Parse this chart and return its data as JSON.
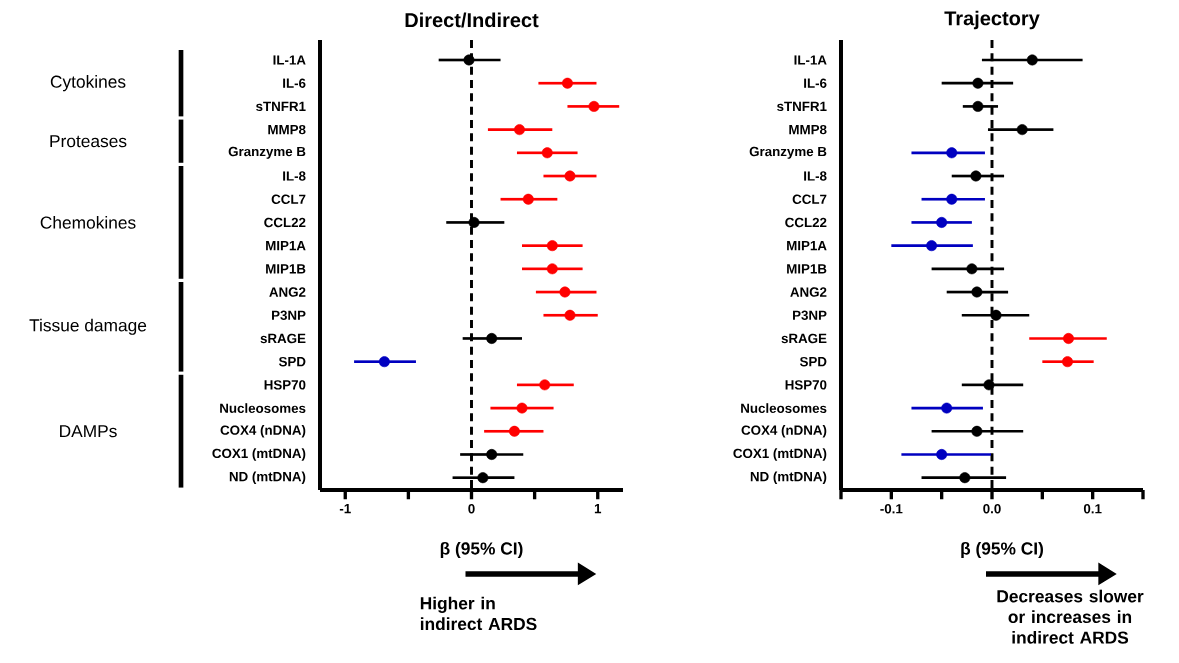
{
  "chart_data": [
    {
      "type": "scatter",
      "title": "Direct/Indirect",
      "xlabel": "β (95% CI)",
      "orientation": "horizontal",
      "categories": [
        "IL-1A",
        "IL-6",
        "sTNFR1",
        "MMP8",
        "Granzyme B",
        "IL-8",
        "CCL7",
        "CCL22",
        "MIP1A",
        "MIP1B",
        "ANG2",
        "P3NP",
        "sRAGE",
        "SPD",
        "HSP70",
        "Nucleosomes",
        "COX4 (nDNA)",
        "COX1 (mtDNA)",
        "ND (mtDNA)"
      ],
      "values": [
        -0.02,
        0.76,
        0.97,
        0.38,
        0.6,
        0.78,
        0.45,
        0.02,
        0.64,
        0.64,
        0.74,
        0.78,
        0.16,
        -0.69,
        0.58,
        0.4,
        0.34,
        0.16,
        0.09
      ],
      "errors": [
        [
          -0.26,
          0.23
        ],
        [
          0.53,
          0.99
        ],
        [
          0.76,
          1.17
        ],
        [
          0.13,
          0.64
        ],
        [
          0.36,
          0.84
        ],
        [
          0.57,
          0.99
        ],
        [
          0.23,
          0.68
        ],
        [
          -0.2,
          0.26
        ],
        [
          0.4,
          0.88
        ],
        [
          0.4,
          0.88
        ],
        [
          0.51,
          0.99
        ],
        [
          0.57,
          1.0
        ],
        [
          -0.07,
          0.4
        ],
        [
          -0.93,
          -0.44
        ],
        [
          0.36,
          0.81
        ],
        [
          0.15,
          0.65
        ],
        [
          0.1,
          0.57
        ],
        [
          -0.09,
          0.41
        ],
        [
          -0.15,
          0.34
        ]
      ],
      "colors": [
        "#000000",
        "#ff0000",
        "#ff0000",
        "#ff0000",
        "#ff0000",
        "#ff0000",
        "#ff0000",
        "#000000",
        "#ff0000",
        "#ff0000",
        "#ff0000",
        "#ff0000",
        "#000000",
        "#0000c0",
        "#ff0000",
        "#ff0000",
        "#ff0000",
        "#000000",
        "#000000"
      ],
      "xlim": [
        -1.2,
        1.2
      ],
      "xticks": [
        -1,
        {
          "value": -0.5,
          "label": null
        },
        0,
        {
          "value": 0.5,
          "label": null
        },
        1
      ],
      "ref_lines": [
        {
          "axis": "x",
          "value": 0,
          "line_style": "dashed",
          "color": "#000000"
        }
      ],
      "annotations": [
        "Cytokines",
        "Proteases",
        "Chemokines",
        "Tissue damage",
        "DAMPs",
        "Higher in indirect ARDS"
      ]
    },
    {
      "type": "scatter",
      "title": "Trajectory",
      "xlabel": "β (95% CI)",
      "orientation": "horizontal",
      "categories": [
        "IL-1A",
        "IL-6",
        "sTNFR1",
        "MMP8",
        "Granzyme B",
        "IL-8",
        "CCL7",
        "CCL22",
        "MIP1A",
        "MIP1B",
        "ANG2",
        "P3NP",
        "sRAGE",
        "SPD",
        "HSP70",
        "Nucleosomes",
        "COX4 (nDNA)",
        "COX1 (mtDNA)",
        "ND (mtDNA)"
      ],
      "values": [
        0.04,
        -0.014,
        -0.014,
        0.03,
        -0.04,
        -0.016,
        -0.04,
        -0.05,
        -0.06,
        -0.02,
        -0.015,
        0.004,
        0.076,
        0.075,
        -0.003,
        -0.045,
        -0.015,
        -0.05,
        -0.027
      ],
      "errors": [
        [
          -0.01,
          0.09
        ],
        [
          -0.05,
          0.021
        ],
        [
          -0.029,
          0.006
        ],
        [
          -0.004,
          0.061
        ],
        [
          -0.08,
          -0.007
        ],
        [
          -0.04,
          0.012
        ],
        [
          -0.07,
          -0.007
        ],
        [
          -0.08,
          -0.02
        ],
        [
          -0.1,
          -0.019
        ],
        [
          -0.06,
          0.012
        ],
        [
          -0.045,
          0.016
        ],
        [
          -0.03,
          0.037
        ],
        [
          0.037,
          0.114
        ],
        [
          0.05,
          0.101
        ],
        [
          -0.03,
          0.031
        ],
        [
          -0.08,
          -0.009
        ],
        [
          -0.06,
          0.031
        ],
        [
          -0.09,
          -0.001
        ],
        [
          -0.07,
          0.014
        ]
      ],
      "colors": [
        "#000000",
        "#000000",
        "#000000",
        "#000000",
        "#0000c0",
        "#000000",
        "#0000c0",
        "#0000c0",
        "#0000c0",
        "#000000",
        "#000000",
        "#000000",
        "#ff0000",
        "#ff0000",
        "#000000",
        "#0000c0",
        "#000000",
        "#0000c0",
        "#000000"
      ],
      "xlim": [
        -0.15,
        0.15
      ],
      "xticks": [
        {
          "value": -0.15,
          "label": null
        },
        -0.1,
        {
          "value": -0.05,
          "label": null
        },
        {
          "value": 0,
          "label": "0.0"
        },
        {
          "value": 0.05,
          "label": null
        },
        0.1,
        {
          "value": 0.15,
          "label": null
        }
      ],
      "ref_lines": [
        {
          "axis": "x",
          "value": 0,
          "line_style": "dashed",
          "color": "#000000"
        }
      ],
      "annotations": [
        "Decreases slower or increases in indirect ARDS"
      ]
    }
  ]
}
